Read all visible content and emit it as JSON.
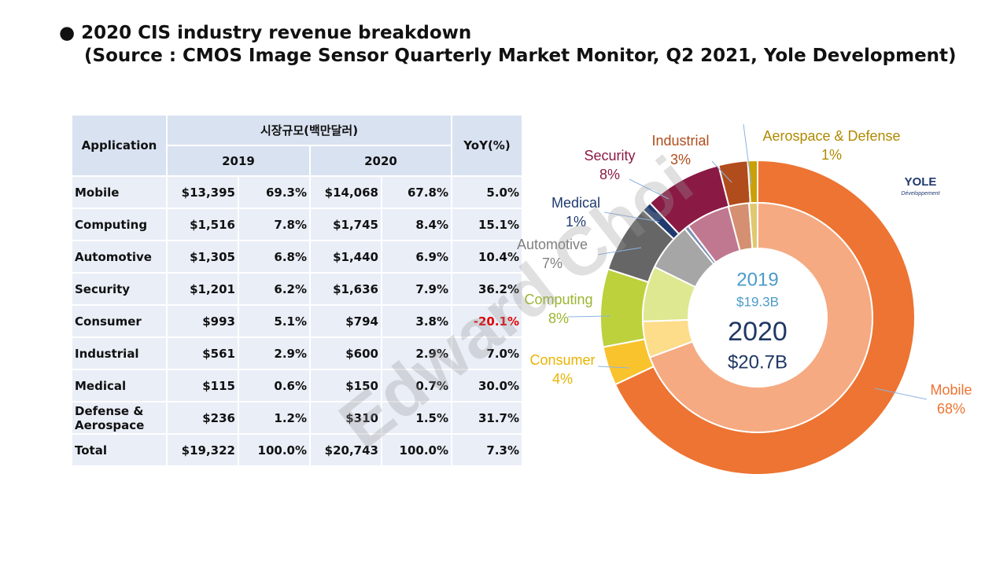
{
  "header": {
    "title": "2020 CIS industry revenue breakdown",
    "source": "(Source : CMOS Image Sensor Quarterly Market Monitor, Q2 2021, Yole Development)"
  },
  "watermark": "Edward Choi",
  "table": {
    "header": {
      "application": "Application",
      "market": "시장규모(백만달러)",
      "years": [
        "2019",
        "2020"
      ],
      "yoy": "YoY(%)"
    },
    "rows": [
      [
        "Mobile",
        "$13,395",
        "69.3%",
        "$14,068",
        "67.8%",
        "5.0%"
      ],
      [
        "Computing",
        "$1,516",
        "7.8%",
        "$1,745",
        "8.4%",
        "15.1%"
      ],
      [
        "Automotive",
        "$1,305",
        "6.8%",
        "$1,440",
        "6.9%",
        "10.4%"
      ],
      [
        "Security",
        "$1,201",
        "6.2%",
        "$1,636",
        "7.9%",
        "36.2%"
      ],
      [
        "Consumer",
        "$993",
        "5.1%",
        "$794",
        "3.8%",
        "-20.1%"
      ],
      [
        "Industrial",
        "$561",
        "2.9%",
        "$600",
        "2.9%",
        "7.0%"
      ],
      [
        "Medical",
        "$115",
        "0.6%",
        "$150",
        "0.7%",
        "30.0%"
      ],
      [
        "Defense & Aerospace",
        "$236",
        "1.2%",
        "$310",
        "1.5%",
        "31.7%"
      ],
      [
        "Total",
        "$19,322",
        "100.0%",
        "$20,743",
        "100.0%",
        "7.3%"
      ]
    ],
    "negative_color": "#e00000"
  },
  "chart_data": {
    "type": "donut",
    "categories": [
      "Mobile",
      "Consumer",
      "Computing",
      "Automotive",
      "Medical",
      "Security",
      "Industrial",
      "Aerospace & Defense"
    ],
    "series": [
      {
        "name": "2020",
        "total": "$20.7B",
        "values": [
          68,
          4,
          8,
          7,
          1,
          8,
          3,
          1
        ],
        "value_labels": [
          "68%",
          "4%",
          "8%",
          "7%",
          "1%",
          "8%",
          "3%",
          "1%"
        ],
        "colors": [
          "#ed7432",
          "#f9c32e",
          "#bdd13d",
          "#666666",
          "#1f3a6e",
          "#8a1a44",
          "#b14d1c",
          "#c9a008"
        ]
      },
      {
        "name": "2019",
        "total": "$19.3B",
        "values": [
          69.3,
          5.1,
          7.8,
          6.8,
          0.6,
          6.2,
          2.9,
          1.2
        ],
        "colors": [
          "#f5aa82",
          "#fddc8a",
          "#dde890",
          "#a6a6a6",
          "#7d8fb5",
          "#c07890",
          "#d49070",
          "#e0c870"
        ]
      }
    ],
    "label_colors": [
      "#ed7432",
      "#e9b300",
      "#9bb530",
      "#7f7f7f",
      "#1f3a6e",
      "#8a1a44",
      "#b14d1c",
      "#b08a00"
    ],
    "logo": {
      "name": "YOLE",
      "subtitle": "Développement"
    }
  }
}
